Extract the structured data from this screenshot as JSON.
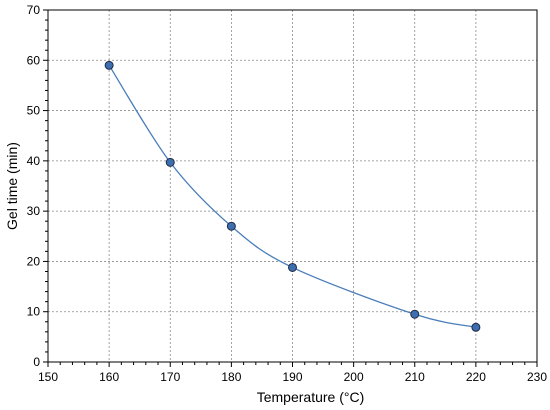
{
  "chart_data": {
    "type": "line",
    "xlabel": "Temperature (°C)",
    "ylabel": "Gel time (min)",
    "xlim": [
      150,
      230
    ],
    "ylim": [
      0,
      70
    ],
    "x_ticks": [
      150,
      160,
      170,
      180,
      190,
      200,
      210,
      220,
      230
    ],
    "y_ticks": [
      0,
      10,
      20,
      30,
      40,
      50,
      60,
      70
    ],
    "grid": true,
    "smooth": true,
    "series": [
      {
        "x": [
          160,
          170,
          180,
          190,
          210,
          220
        ],
        "values": [
          59,
          39.7,
          27,
          18.8,
          9.5,
          6.9
        ],
        "color": "#4a7ebb",
        "marker_color": "#3d6fb0",
        "marker": "circle"
      }
    ]
  }
}
